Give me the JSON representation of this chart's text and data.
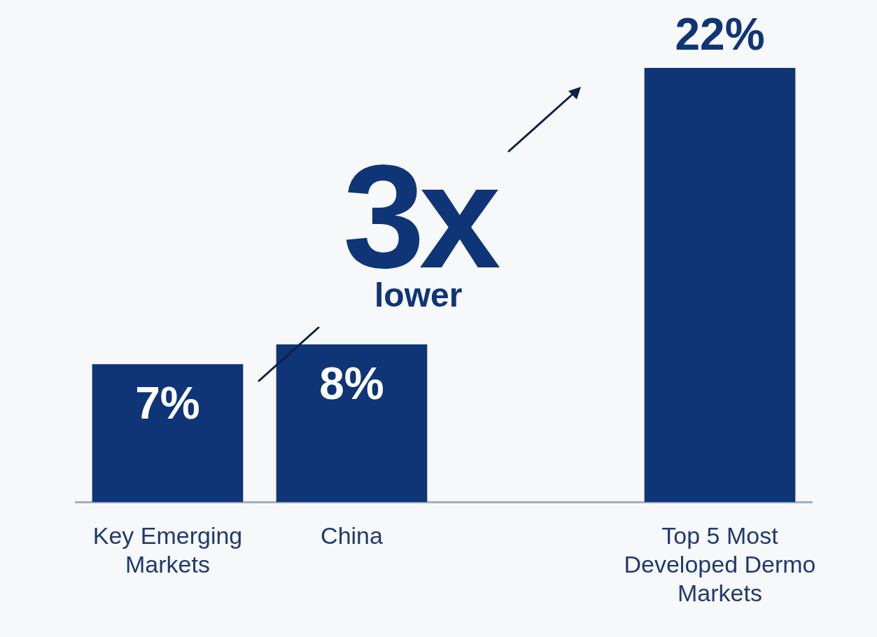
{
  "chart_data": {
    "type": "bar",
    "categories": [
      "Key Emerging Markets",
      "China",
      null,
      "Top 5 Most Developed Dermo Markets"
    ],
    "values": [
      7,
      8,
      null,
      22
    ],
    "color": "#0f3577",
    "value_labels": [
      "7%",
      "8%",
      null,
      "22%"
    ],
    "annotations": [
      "3x",
      "lower"
    ],
    "legend": false,
    "grid": false
  }
}
